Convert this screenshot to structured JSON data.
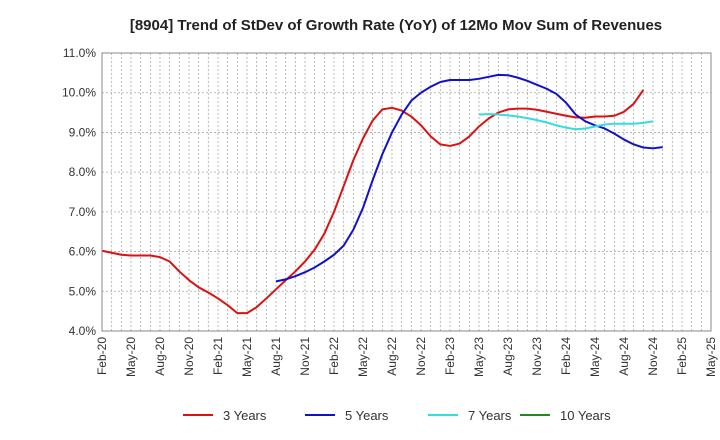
{
  "chart_data": {
    "type": "line",
    "title": "[8904]  Trend of StDev of Growth Rate (YoY) of 12Mo Mov Sum of Revenues",
    "xlabel": "",
    "ylabel": "",
    "ylim": [
      4.0,
      11.0
    ],
    "y_ticks": [
      "4.0%",
      "5.0%",
      "6.0%",
      "7.0%",
      "8.0%",
      "9.0%",
      "10.0%",
      "11.0%"
    ],
    "x_ticks": [
      "Feb-20",
      "May-20",
      "Aug-20",
      "Nov-20",
      "Feb-21",
      "May-21",
      "Aug-21",
      "Nov-21",
      "Feb-22",
      "May-22",
      "Aug-22",
      "Nov-22",
      "Feb-23",
      "May-23",
      "Aug-23",
      "Nov-23",
      "Feb-24",
      "May-24",
      "Aug-24",
      "Nov-24",
      "Feb-25",
      "May-25"
    ],
    "grid": true,
    "legend_position": "bottom",
    "series": [
      {
        "name": "3 Years",
        "color": "#dd1111",
        "start_index": 0,
        "values": [
          6.02,
          5.97,
          5.92,
          5.9,
          5.9,
          5.9,
          5.86,
          5.75,
          5.5,
          5.28,
          5.1,
          4.97,
          4.82,
          4.65,
          4.45,
          4.45,
          4.6,
          4.82,
          5.05,
          5.28,
          5.5,
          5.75,
          6.05,
          6.45,
          7.0,
          7.65,
          8.3,
          8.85,
          9.3,
          9.58,
          9.62,
          9.55,
          9.4,
          9.18,
          8.9,
          8.7,
          8.66,
          8.72,
          8.9,
          9.15,
          9.35,
          9.5,
          9.58,
          9.6,
          9.6,
          9.57,
          9.52,
          9.47,
          9.42,
          9.38,
          9.37,
          9.4,
          9.4,
          9.42,
          9.52,
          9.72,
          10.07
        ]
      },
      {
        "name": "5 Years",
        "color": "#1111cc",
        "start_index": 18,
        "values": [
          5.25,
          5.3,
          5.38,
          5.48,
          5.6,
          5.75,
          5.92,
          6.15,
          6.55,
          7.1,
          7.8,
          8.45,
          9.0,
          9.45,
          9.8,
          10.0,
          10.15,
          10.27,
          10.32,
          10.32,
          10.32,
          10.35,
          10.4,
          10.45,
          10.44,
          10.38,
          10.3,
          10.2,
          10.1,
          9.97,
          9.75,
          9.45,
          9.28,
          9.18,
          9.1,
          8.97,
          8.82,
          8.7,
          8.62,
          8.6,
          8.63
        ]
      },
      {
        "name": "7 Years",
        "color": "#33dddd",
        "start_index": 39,
        "values": [
          9.45,
          9.46,
          9.45,
          9.43,
          9.4,
          9.36,
          9.31,
          9.25,
          9.18,
          9.12,
          9.08,
          9.1,
          9.15,
          9.2,
          9.22,
          9.22,
          9.22,
          9.24,
          9.28
        ]
      },
      {
        "name": "10 Years",
        "color": "#228822",
        "start_index": 0,
        "values": []
      }
    ]
  }
}
